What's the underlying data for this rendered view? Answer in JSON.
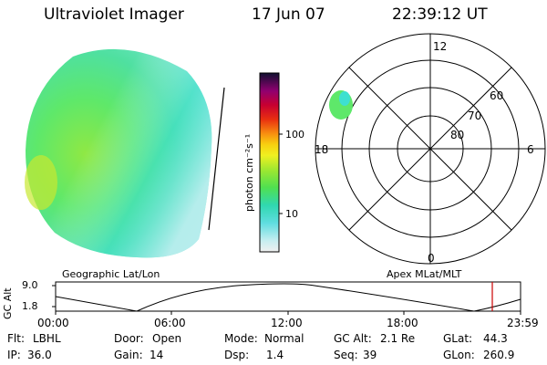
{
  "header": {
    "title": "Ultraviolet Imager",
    "date": "17 Jun 07",
    "time": "22:39:12 UT"
  },
  "colorbar": {
    "label": "photon cm⁻²s⁻¹",
    "ticks": [
      "100",
      "10"
    ]
  },
  "polar_plot": {
    "mlt_labels": [
      "12",
      "18",
      "6",
      "0"
    ],
    "lat_labels": [
      "60",
      "70",
      "80"
    ]
  },
  "labels": {
    "left_panel": "Geographic Lat/Lon",
    "right_panel": "Apex MLat/MLT"
  },
  "altitude_plot": {
    "ylabel": "GC Alt",
    "y_ticks": [
      "9.0",
      "1.8"
    ],
    "x_ticks": [
      "00:00",
      "06:00",
      "12:00",
      "18:00",
      "23:59"
    ]
  },
  "status": {
    "flt_label": "Flt:",
    "flt_value": "LBHL",
    "ip_label": "IP:",
    "ip_value": "36.0",
    "door_label": "Door:",
    "door_value": "Open",
    "gain_label": "Gain:",
    "gain_value": "14",
    "mode_label": "Mode:",
    "mode_value": "Normal",
    "dsp_label": "Dsp:",
    "dsp_value": "1.4",
    "gcalt_label": "GC Alt:",
    "gcalt_value": "2.1 Re",
    "seq_label": "Seq:",
    "seq_value": "39",
    "glat_label": "GLat:",
    "glat_value": "44.3",
    "glon_label": "GLon:",
    "glon_value": "260.9"
  },
  "colors": {
    "disk_fill": "#5ee86a",
    "disk_cyan": "#3ee0d0",
    "disk_pale": "#bdeef0",
    "marker": "#cc0000"
  }
}
